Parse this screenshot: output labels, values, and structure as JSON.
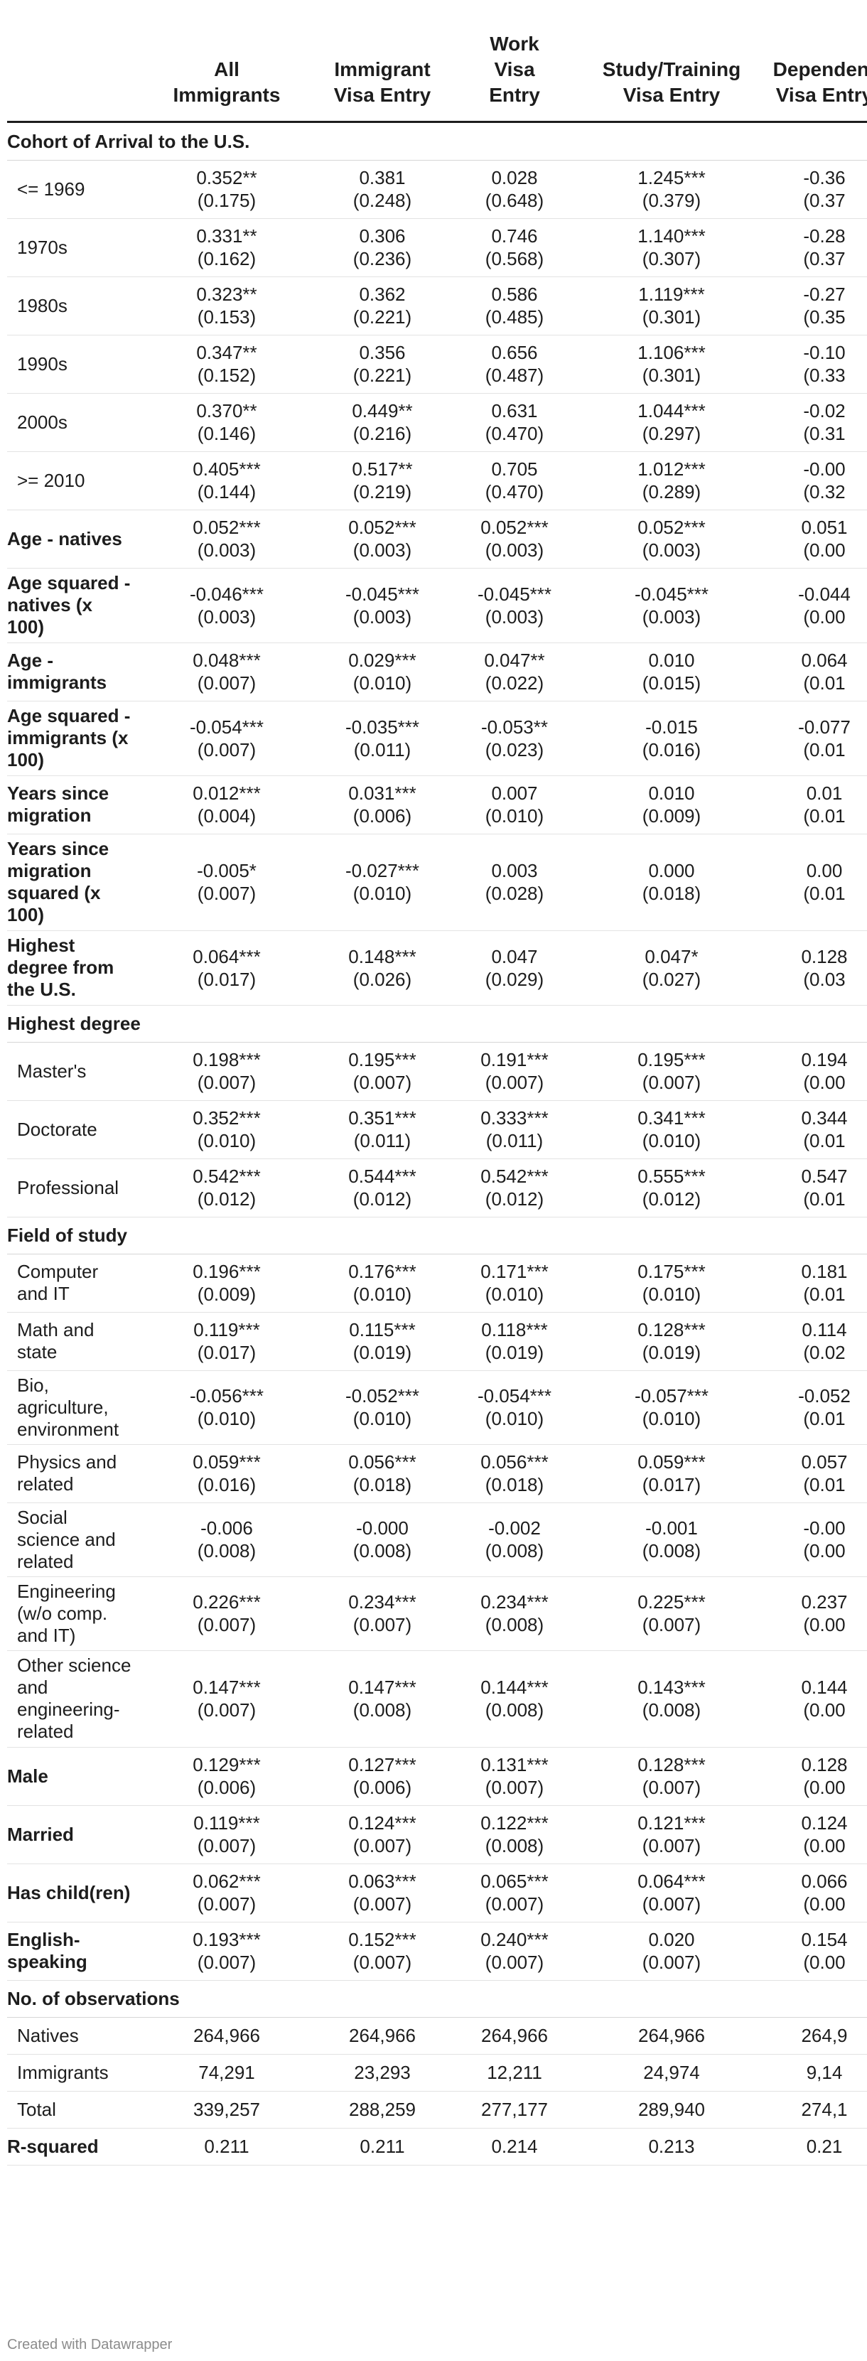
{
  "columns": [
    "All\nImmigrants",
    "Immigrant\nVisa Entry",
    "Work\nVisa\nEntry",
    "Study/Training\nVisa Entry",
    "Dependent\nVisa Entry"
  ],
  "rows": [
    {
      "type": "section",
      "label": "Cohort of Arrival to the U.S."
    },
    {
      "label": "<= 1969",
      "indent": true,
      "cells": [
        [
          "0.352**",
          "(0.175)"
        ],
        [
          "0.381",
          "(0.248)"
        ],
        [
          "0.028",
          "(0.648)"
        ],
        [
          "1.245***",
          "(0.379)"
        ],
        [
          "-0.36",
          "(0.37"
        ]
      ]
    },
    {
      "label": "1970s",
      "indent": true,
      "cells": [
        [
          "0.331**",
          "(0.162)"
        ],
        [
          "0.306",
          "(0.236)"
        ],
        [
          "0.746",
          "(0.568)"
        ],
        [
          "1.140***",
          "(0.307)"
        ],
        [
          "-0.28",
          "(0.37"
        ]
      ]
    },
    {
      "label": "1980s",
      "indent": true,
      "cells": [
        [
          "0.323**",
          "(0.153)"
        ],
        [
          "0.362",
          "(0.221)"
        ],
        [
          "0.586",
          "(0.485)"
        ],
        [
          "1.119***",
          "(0.301)"
        ],
        [
          "-0.27",
          "(0.35"
        ]
      ]
    },
    {
      "label": "1990s",
      "indent": true,
      "cells": [
        [
          "0.347**",
          "(0.152)"
        ],
        [
          "0.356",
          "(0.221)"
        ],
        [
          "0.656",
          "(0.487)"
        ],
        [
          "1.106***",
          "(0.301)"
        ],
        [
          "-0.10",
          "(0.33"
        ]
      ]
    },
    {
      "label": "2000s",
      "indent": true,
      "cells": [
        [
          "0.370**",
          "(0.146)"
        ],
        [
          "0.449**",
          "(0.216)"
        ],
        [
          "0.631",
          "(0.470)"
        ],
        [
          "1.044***",
          "(0.297)"
        ],
        [
          "-0.02",
          "(0.31"
        ]
      ]
    },
    {
      "label": ">= 2010",
      "indent": true,
      "cells": [
        [
          "0.405***",
          "(0.144)"
        ],
        [
          "0.517**",
          "(0.219)"
        ],
        [
          "0.705",
          "(0.470)"
        ],
        [
          "1.012***",
          "(0.289)"
        ],
        [
          "-0.00",
          "(0.32"
        ]
      ]
    },
    {
      "label": "Age - natives",
      "bold": true,
      "cells": [
        [
          "0.052***",
          "(0.003)"
        ],
        [
          "0.052***",
          "(0.003)"
        ],
        [
          "0.052***",
          "(0.003)"
        ],
        [
          "0.052***",
          "(0.003)"
        ],
        [
          "0.051",
          "(0.00"
        ]
      ]
    },
    {
      "label": "Age squared - natives (x 100)",
      "bold": true,
      "cells": [
        [
          "-0.046***",
          "(0.003)"
        ],
        [
          "-0.045***",
          "(0.003)"
        ],
        [
          "-0.045***",
          "(0.003)"
        ],
        [
          "-0.045***",
          "(0.003)"
        ],
        [
          "-0.044",
          "(0.00"
        ]
      ]
    },
    {
      "label": "Age - immigrants",
      "bold": true,
      "cells": [
        [
          "0.048***",
          "(0.007)"
        ],
        [
          "0.029***",
          "(0.010)"
        ],
        [
          "0.047**",
          "(0.022)"
        ],
        [
          "0.010",
          "(0.015)"
        ],
        [
          "0.064",
          "(0.01"
        ]
      ]
    },
    {
      "label": "Age squared - immigrants (x 100)",
      "bold": true,
      "cells": [
        [
          "-0.054***",
          "(0.007)"
        ],
        [
          "-0.035***",
          "(0.011)"
        ],
        [
          "-0.053**",
          "(0.023)"
        ],
        [
          "-0.015",
          "(0.016)"
        ],
        [
          "-0.077",
          "(0.01"
        ]
      ]
    },
    {
      "label": "Years since migration",
      "bold": true,
      "cells": [
        [
          "0.012***",
          "(0.004)"
        ],
        [
          "0.031***",
          "(0.006)"
        ],
        [
          "0.007",
          "(0.010)"
        ],
        [
          "0.010",
          "(0.009)"
        ],
        [
          "0.01",
          "(0.01"
        ]
      ]
    },
    {
      "label": "Years since migration squared (x 100)",
      "bold": true,
      "cells": [
        [
          "-0.005*",
          "(0.007)"
        ],
        [
          "-0.027***",
          "(0.010)"
        ],
        [
          "0.003",
          "(0.028)"
        ],
        [
          "0.000",
          "(0.018)"
        ],
        [
          "0.00",
          "(0.01"
        ]
      ]
    },
    {
      "label": "Highest degree from the U.S.",
      "bold": true,
      "cells": [
        [
          "0.064***",
          "(0.017)"
        ],
        [
          "0.148***",
          "(0.026)"
        ],
        [
          "0.047",
          "(0.029)"
        ],
        [
          "0.047*",
          "(0.027)"
        ],
        [
          "0.128",
          "(0.03"
        ]
      ]
    },
    {
      "type": "section",
      "label": "Highest degree"
    },
    {
      "label": "Master's",
      "indent": true,
      "cells": [
        [
          "0.198***",
          "(0.007)"
        ],
        [
          "0.195***",
          "(0.007)"
        ],
        [
          "0.191***",
          "(0.007)"
        ],
        [
          "0.195***",
          "(0.007)"
        ],
        [
          "0.194",
          "(0.00"
        ]
      ]
    },
    {
      "label": "Doctorate",
      "indent": true,
      "cells": [
        [
          "0.352***",
          "(0.010)"
        ],
        [
          "0.351***",
          "(0.011)"
        ],
        [
          "0.333***",
          "(0.011)"
        ],
        [
          "0.341***",
          "(0.010)"
        ],
        [
          "0.344",
          "(0.01"
        ]
      ]
    },
    {
      "label": "Professional",
      "indent": true,
      "cells": [
        [
          "0.542***",
          "(0.012)"
        ],
        [
          "0.544***",
          "(0.012)"
        ],
        [
          "0.542***",
          "(0.012)"
        ],
        [
          "0.555***",
          "(0.012)"
        ],
        [
          "0.547",
          "(0.01"
        ]
      ]
    },
    {
      "type": "section",
      "label": "Field of study"
    },
    {
      "label": "Computer and IT",
      "indent": true,
      "cells": [
        [
          "0.196***",
          "(0.009)"
        ],
        [
          "0.176***",
          "(0.010)"
        ],
        [
          "0.171***",
          "(0.010)"
        ],
        [
          "0.175***",
          "(0.010)"
        ],
        [
          "0.181",
          "(0.01"
        ]
      ]
    },
    {
      "label": "Math and state",
      "indent": true,
      "cells": [
        [
          "0.119***",
          "(0.017)"
        ],
        [
          "0.115***",
          "(0.019)"
        ],
        [
          "0.118***",
          "(0.019)"
        ],
        [
          "0.128***",
          "(0.019)"
        ],
        [
          "0.114",
          "(0.02"
        ]
      ]
    },
    {
      "label": "Bio, agriculture, environment",
      "indent": true,
      "cells": [
        [
          "-0.056***",
          "(0.010)"
        ],
        [
          "-0.052***",
          "(0.010)"
        ],
        [
          "-0.054***",
          "(0.010)"
        ],
        [
          "-0.057***",
          "(0.010)"
        ],
        [
          "-0.052",
          "(0.01"
        ]
      ]
    },
    {
      "label": "Physics and related",
      "indent": true,
      "cells": [
        [
          "0.059***",
          "(0.016)"
        ],
        [
          "0.056***",
          "(0.018)"
        ],
        [
          "0.056***",
          "(0.018)"
        ],
        [
          "0.059***",
          "(0.017)"
        ],
        [
          "0.057",
          "(0.01"
        ]
      ]
    },
    {
      "label": "Social science and related",
      "indent": true,
      "cells": [
        [
          "-0.006",
          "(0.008)"
        ],
        [
          "-0.000",
          "(0.008)"
        ],
        [
          "-0.002",
          "(0.008)"
        ],
        [
          "-0.001",
          "(0.008)"
        ],
        [
          "-0.00",
          "(0.00"
        ]
      ]
    },
    {
      "label": "Engineering (w/o comp. and IT)",
      "indent": true,
      "cells": [
        [
          "0.226***",
          "(0.007)"
        ],
        [
          "0.234***",
          "(0.007)"
        ],
        [
          "0.234***",
          "(0.008)"
        ],
        [
          "0.225***",
          "(0.007)"
        ],
        [
          "0.237",
          "(0.00"
        ]
      ]
    },
    {
      "label": "Other science and engineering-related",
      "indent": true,
      "cells": [
        [
          "0.147***",
          "(0.007)"
        ],
        [
          "0.147***",
          "(0.008)"
        ],
        [
          "0.144***",
          "(0.008)"
        ],
        [
          "0.143***",
          "(0.008)"
        ],
        [
          "0.144",
          "(0.00"
        ]
      ]
    },
    {
      "label": "Male",
      "bold": true,
      "cells": [
        [
          "0.129***",
          "(0.006)"
        ],
        [
          "0.127***",
          "(0.006)"
        ],
        [
          "0.131***",
          "(0.007)"
        ],
        [
          "0.128***",
          "(0.007)"
        ],
        [
          "0.128",
          "(0.00"
        ]
      ]
    },
    {
      "label": "Married",
      "bold": true,
      "cells": [
        [
          "0.119***",
          "(0.007)"
        ],
        [
          "0.124***",
          "(0.007)"
        ],
        [
          "0.122***",
          "(0.008)"
        ],
        [
          "0.121***",
          "(0.007)"
        ],
        [
          "0.124",
          "(0.00"
        ]
      ]
    },
    {
      "label": "Has child(ren)",
      "bold": true,
      "cells": [
        [
          "0.062***",
          "(0.007)"
        ],
        [
          "0.063***",
          "(0.007)"
        ],
        [
          "0.065***",
          "(0.007)"
        ],
        [
          "0.064***",
          "(0.007)"
        ],
        [
          "0.066",
          "(0.00"
        ]
      ]
    },
    {
      "label": "English-speaking",
      "bold": true,
      "cells": [
        [
          "0.193***",
          "(0.007)"
        ],
        [
          "0.152***",
          "(0.007)"
        ],
        [
          "0.240***",
          "(0.007)"
        ],
        [
          "0.020",
          "(0.007)"
        ],
        [
          "0.154",
          "(0.00"
        ]
      ]
    },
    {
      "type": "section",
      "label": "No. of observations"
    },
    {
      "label": "Natives",
      "indent": true,
      "cells": [
        [
          "264,966"
        ],
        [
          "264,966"
        ],
        [
          "264,966"
        ],
        [
          "264,966"
        ],
        [
          "264,9"
        ]
      ]
    },
    {
      "label": "Immigrants",
      "indent": true,
      "cells": [
        [
          "74,291"
        ],
        [
          "23,293"
        ],
        [
          "12,211"
        ],
        [
          "24,974"
        ],
        [
          "9,14"
        ]
      ]
    },
    {
      "label": "Total",
      "indent": true,
      "cells": [
        [
          "339,257"
        ],
        [
          "288,259"
        ],
        [
          "277,177"
        ],
        [
          "289,940"
        ],
        [
          "274,1"
        ]
      ]
    },
    {
      "label": "R-squared",
      "bold": true,
      "cells": [
        [
          "0.211"
        ],
        [
          "0.211"
        ],
        [
          "0.214"
        ],
        [
          "0.213"
        ],
        [
          "0.21"
        ]
      ]
    }
  ],
  "footer": {
    "credit": "Created with Datawrapper"
  }
}
